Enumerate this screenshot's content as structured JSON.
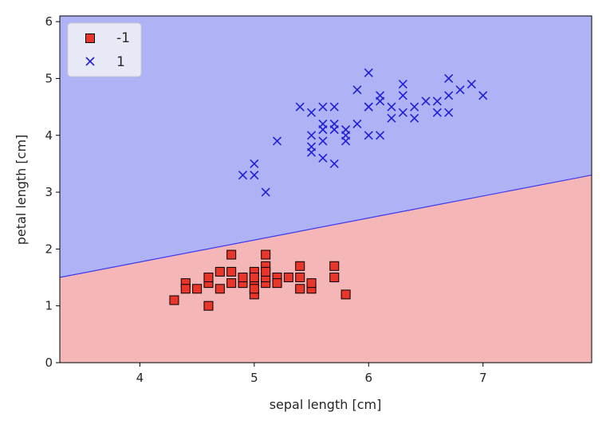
{
  "chart_data": {
    "type": "scatter",
    "title": "",
    "xlabel": "sepal length [cm]",
    "ylabel": "petal length [cm]",
    "xlim": [
      3.3,
      7.95
    ],
    "ylim": [
      0,
      6.1
    ],
    "xticks": [
      4,
      5,
      6,
      7
    ],
    "yticks": [
      0,
      1,
      2,
      3,
      4,
      5,
      6
    ],
    "grid": false,
    "legend_position": "top-left",
    "decision_boundary": {
      "points": [
        [
          3.3,
          1.5
        ],
        [
          7.95,
          3.3
        ]
      ]
    },
    "regions": {
      "class_minus_1_color": "#f4b6b6",
      "class_1_color": "#b0b2f6",
      "boundary_color": "#3a3af0"
    },
    "series": [
      {
        "name": "-1",
        "marker": "square",
        "color": "#e8362a",
        "edge_color": "#000000",
        "points": [
          [
            4.3,
            1.1
          ],
          [
            4.4,
            1.4
          ],
          [
            4.4,
            1.3
          ],
          [
            4.5,
            1.3
          ],
          [
            4.6,
            1.0
          ],
          [
            4.6,
            1.4
          ],
          [
            4.6,
            1.5
          ],
          [
            4.7,
            1.3
          ],
          [
            4.7,
            1.6
          ],
          [
            4.8,
            1.9
          ],
          [
            4.8,
            1.6
          ],
          [
            4.8,
            1.4
          ],
          [
            4.9,
            1.4
          ],
          [
            4.9,
            1.5
          ],
          [
            5.0,
            1.2
          ],
          [
            5.0,
            1.4
          ],
          [
            5.0,
            1.6
          ],
          [
            5.0,
            1.5
          ],
          [
            5.0,
            1.3
          ],
          [
            5.1,
            1.4
          ],
          [
            5.1,
            1.5
          ],
          [
            5.1,
            1.7
          ],
          [
            5.1,
            1.9
          ],
          [
            5.1,
            1.6
          ],
          [
            5.2,
            1.5
          ],
          [
            5.2,
            1.4
          ],
          [
            5.3,
            1.5
          ],
          [
            5.4,
            1.7
          ],
          [
            5.4,
            1.5
          ],
          [
            5.4,
            1.3
          ],
          [
            5.5,
            1.3
          ],
          [
            5.5,
            1.4
          ],
          [
            5.7,
            1.5
          ],
          [
            5.7,
            1.7
          ],
          [
            5.8,
            1.2
          ]
        ]
      },
      {
        "name": "1",
        "marker": "x",
        "color": "#1f1fd6",
        "points": [
          [
            4.9,
            3.3
          ],
          [
            5.0,
            3.5
          ],
          [
            5.0,
            3.3
          ],
          [
            5.1,
            3.0
          ],
          [
            5.2,
            3.9
          ],
          [
            5.4,
            4.5
          ],
          [
            5.5,
            4.0
          ],
          [
            5.5,
            4.4
          ],
          [
            5.5,
            3.8
          ],
          [
            5.5,
            3.7
          ],
          [
            5.6,
            4.5
          ],
          [
            5.6,
            4.1
          ],
          [
            5.6,
            3.9
          ],
          [
            5.6,
            3.6
          ],
          [
            5.6,
            4.2
          ],
          [
            5.7,
            4.5
          ],
          [
            5.7,
            4.2
          ],
          [
            5.7,
            3.5
          ],
          [
            5.7,
            4.1
          ],
          [
            5.8,
            4.1
          ],
          [
            5.8,
            3.9
          ],
          [
            5.8,
            4.0
          ],
          [
            5.9,
            4.8
          ],
          [
            5.9,
            4.2
          ],
          [
            6.0,
            4.5
          ],
          [
            6.0,
            5.1
          ],
          [
            6.0,
            4.0
          ],
          [
            6.0,
            4.5
          ],
          [
            6.1,
            4.7
          ],
          [
            6.1,
            4.0
          ],
          [
            6.1,
            4.6
          ],
          [
            6.2,
            4.3
          ],
          [
            6.2,
            4.5
          ],
          [
            6.3,
            4.7
          ],
          [
            6.3,
            4.9
          ],
          [
            6.3,
            4.4
          ],
          [
            6.4,
            4.5
          ],
          [
            6.4,
            4.3
          ],
          [
            6.5,
            4.6
          ],
          [
            6.6,
            4.6
          ],
          [
            6.6,
            4.4
          ],
          [
            6.7,
            4.4
          ],
          [
            6.7,
            5.0
          ],
          [
            6.7,
            4.7
          ],
          [
            6.8,
            4.8
          ],
          [
            6.9,
            4.9
          ],
          [
            7.0,
            4.7
          ]
        ]
      }
    ]
  }
}
